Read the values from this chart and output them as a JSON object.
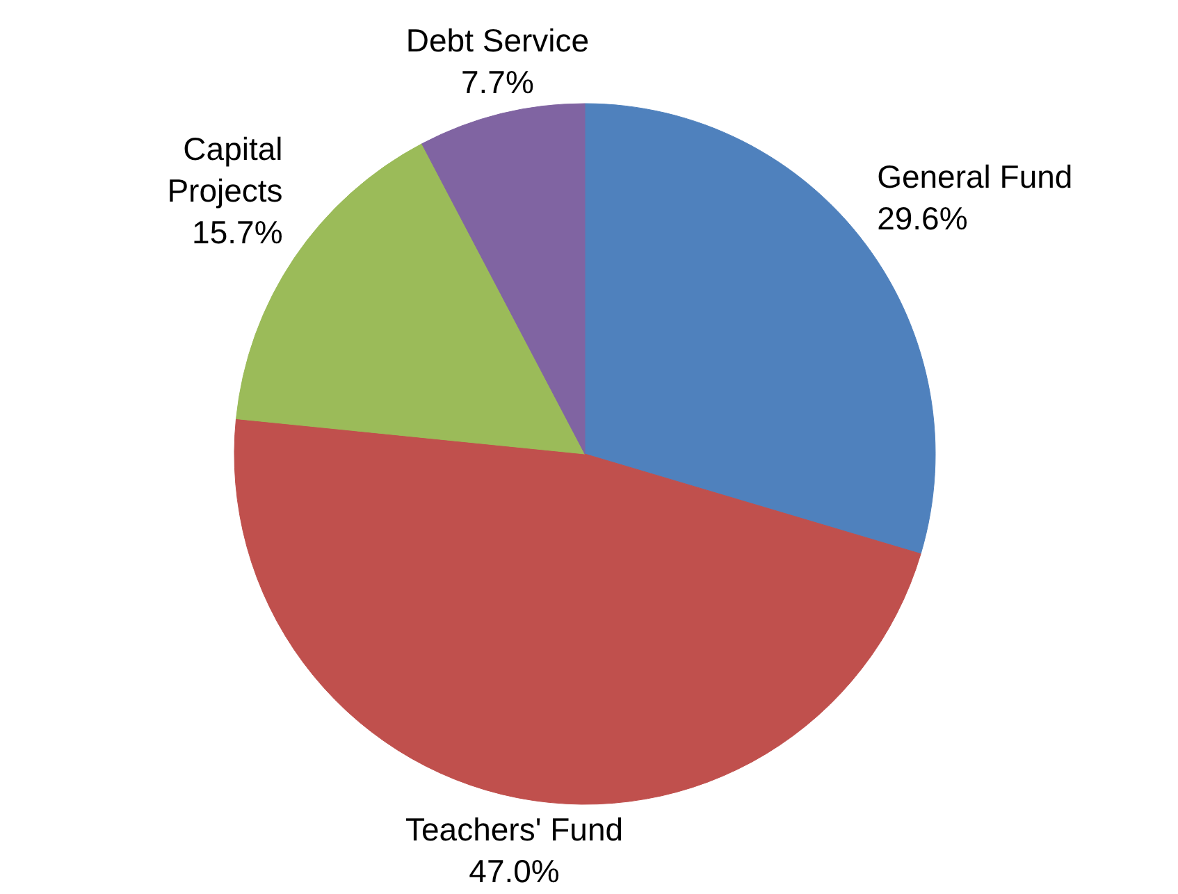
{
  "chart_data": {
    "type": "pie",
    "categories": [
      "General Fund",
      "Teachers' Fund",
      "Capital\nProjects",
      "Debt Service"
    ],
    "values": [
      29.6,
      47.0,
      15.7,
      7.7
    ],
    "value_labels": [
      "29.6%",
      "47.0%",
      "15.7%",
      "7.7%"
    ],
    "colors": [
      "#4f81bd",
      "#c0504d",
      "#9bbb59",
      "#8064a2"
    ]
  }
}
